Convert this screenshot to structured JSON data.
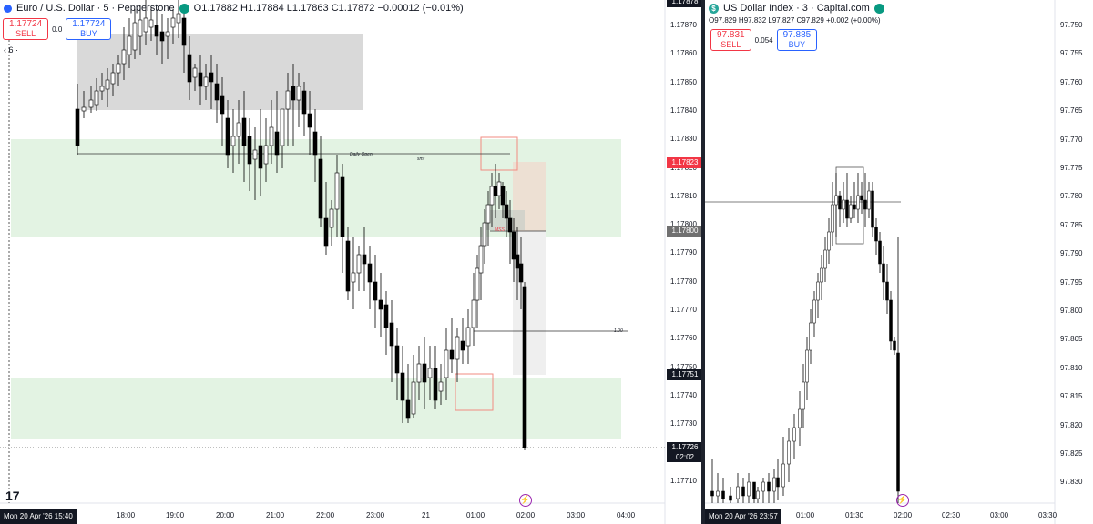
{
  "left": {
    "symbol": "Euro / U.S. Dollar · 5 · Pepperstone",
    "ohlc": "O1.17882  H1.17884  L1.17863  C1.17872  −0.00012 (−0.01%)",
    "sell": {
      "price": "1.17724",
      "label": "SELL"
    },
    "buy": {
      "price": "1.17724",
      "label": "BUY"
    },
    "spread": "0.0",
    "indicator_count": "6",
    "price_axis": [
      "1.17870",
      "1.17860",
      "1.17850",
      "1.17840",
      "1.17830",
      "1.17820",
      "1.17810",
      "1.17800",
      "1.17790",
      "1.17780",
      "1.17770",
      "1.17760",
      "1.17750",
      "1.17740",
      "1.17730",
      "1.17720",
      "1.17710"
    ],
    "top_tag": "1.17878",
    "tag_red": "1.17823",
    "tag_gray": "1.17800",
    "tag_last": "1.17751",
    "tag_current": "1.17726",
    "countdown": "02:02",
    "time_axis": [
      "18:00",
      "19:00",
      "20:00",
      "21:00",
      "22:00",
      "23:00",
      "21",
      "01:00",
      "02:00",
      "03:00",
      "04:00"
    ],
    "cursor_time": "Mon 20 Apr '26   15:40",
    "annotations": {
      "daily_open": "Daily Open",
      "smt": "smt",
      "mss": "MSS",
      "fib": "1.00"
    },
    "colors": {
      "demand_zone": "#e3f3e3",
      "supply_zone": "#d9d9d9",
      "up": "#ffffff",
      "down": "#000000"
    }
  },
  "right": {
    "symbol": "US Dollar Index · 3 · Capital.com",
    "ohlc": "O97.829  H97.832  L97.827  C97.829  +0.002 (+0.00%)",
    "sell": {
      "price": "97.831",
      "label": "SELL"
    },
    "buy": {
      "price": "97.885",
      "label": "BUY"
    },
    "spread": "0.054",
    "price_axis": [
      "97.750",
      "97.755",
      "97.760",
      "97.765",
      "97.770",
      "97.775",
      "97.780",
      "97.785",
      "97.790",
      "97.795",
      "97.800",
      "97.805",
      "97.810",
      "97.815",
      "97.820",
      "97.825",
      "97.830"
    ],
    "time_axis": [
      "01:00",
      "01:30",
      "02:00",
      "02:30",
      "03:00",
      "03:30"
    ],
    "cursor_time": "Mon 20 Apr '26   23:57"
  }
}
